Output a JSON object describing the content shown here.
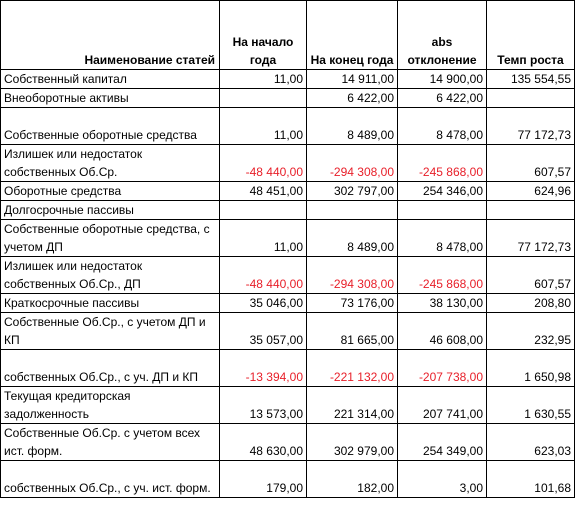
{
  "header": {
    "name": "Наименование статей",
    "start": "На начало года",
    "end": "На конец года",
    "abs": "abs отклонение",
    "rate": "Темп роста"
  },
  "rows": [
    {
      "name": "Собственный капитал",
      "start": "11,00",
      "end": "14 911,00",
      "abs": "14 900,00",
      "rate": "135 554,55"
    },
    {
      "name": "Внеоборотные активы",
      "start": "",
      "end": "6 422,00",
      "abs": "6 422,00",
      "rate": ""
    },
    {
      "name": "Собственные оборотные средства",
      "start": "11,00",
      "end": "8 489,00",
      "abs": "8 478,00",
      "rate": "77 172,73"
    },
    {
      "name": "Излишек или недостаток собственных Об.Ср.",
      "start": "-48 440,00",
      "end": "-294 308,00",
      "abs": "-245 868,00",
      "rate": "607,57"
    },
    {
      "name": "Оборотные средства",
      "start": "48 451,00",
      "end": "302 797,00",
      "abs": "254 346,00",
      "rate": "624,96"
    },
    {
      "name": "Долгосрочные пассивы",
      "start": "",
      "end": "",
      "abs": "",
      "rate": ""
    },
    {
      "name": "Собственные оборотные средства, с учетом ДП",
      "start": "11,00",
      "end": "8 489,00",
      "abs": "8 478,00",
      "rate": "77 172,73"
    },
    {
      "name": "Излишек или недостаток собственных Об.Ср., ДП",
      "start": "-48 440,00",
      "end": "-294 308,00",
      "abs": "-245 868,00",
      "rate": "607,57"
    },
    {
      "name": "Краткосрочные пассивы",
      "start": "35 046,00",
      "end": "73 176,00",
      "abs": "38 130,00",
      "rate": "208,80"
    },
    {
      "name": "Собственные Об.Ср., с учетом ДП и КП",
      "start": "35 057,00",
      "end": "81 665,00",
      "abs": "46 608,00",
      "rate": "232,95"
    },
    {
      "name": "собственных Об.Ср., с уч. ДП и КП",
      "start": "-13 394,00",
      "end": "-221 132,00",
      "abs": "-207 738,00",
      "rate": "1 650,98"
    },
    {
      "name": "Текущая кредиторская задолженность",
      "start": "13 573,00",
      "end": "221 314,00",
      "abs": "207 741,00",
      "rate": "1 630,55"
    },
    {
      "name": "Собственные Об.Ср. с учетом всех ист. форм.",
      "start": "48 630,00",
      "end": "302 979,00",
      "abs": "254 349,00",
      "rate": "623,03"
    },
    {
      "name": "собственных Об.Ср., с уч. ист. форм.",
      "start": "179,00",
      "end": "182,00",
      "abs": "3,00",
      "rate": "101,68"
    }
  ]
}
